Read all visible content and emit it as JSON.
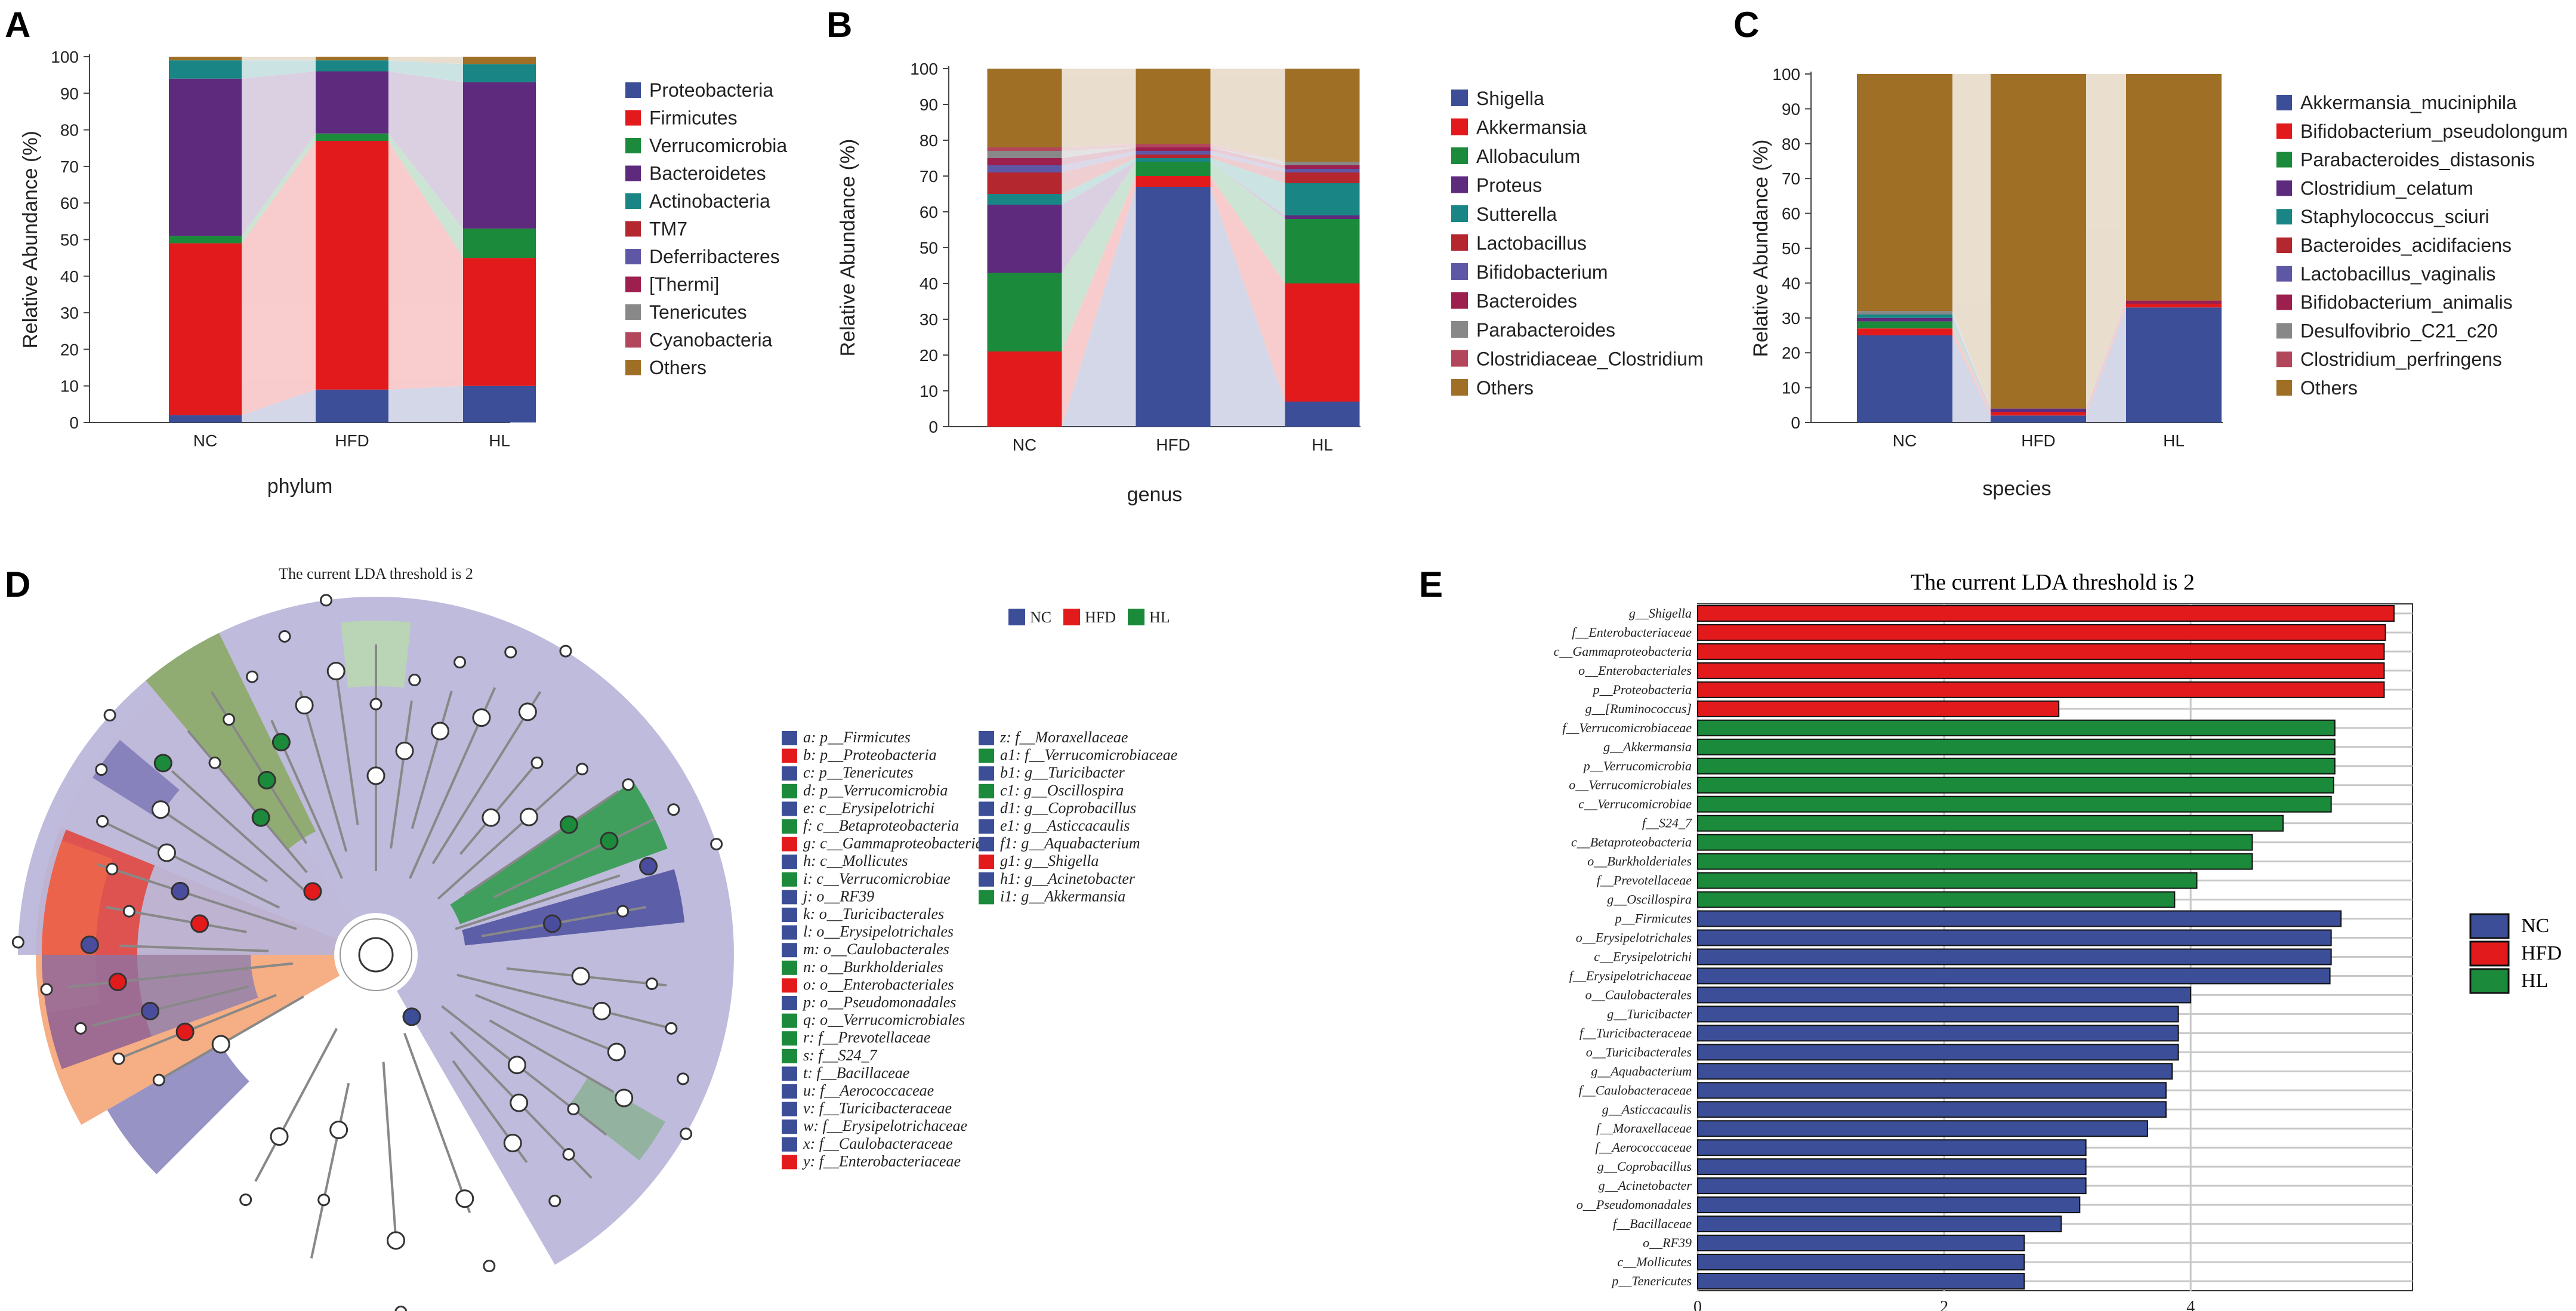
{
  "panel_labels": [
    "A",
    "B",
    "C",
    "D",
    "E"
  ],
  "chart_data": [
    {
      "type": "stacked-bar",
      "panel": "A",
      "xlabel": "phylum",
      "ylabel": "Relative Abundance (%)",
      "ylim": [
        0,
        100
      ],
      "yticks": [
        0,
        10,
        20,
        30,
        40,
        50,
        60,
        70,
        80,
        90,
        100
      ],
      "categories": [
        "NC",
        "HFD",
        "HL"
      ],
      "series": [
        {
          "name": "Proteobacteria",
          "color": "#3b4e97",
          "values": [
            2,
            9,
            10
          ]
        },
        {
          "name": "Firmicutes",
          "color": "#e31a1c",
          "values": [
            47,
            68,
            35
          ]
        },
        {
          "name": "Verrucomicrobia",
          "color": "#1b8a3a",
          "values": [
            2,
            2,
            8
          ]
        },
        {
          "name": "Bacteroidetes",
          "color": "#5e2a7e",
          "values": [
            43,
            17,
            40
          ]
        },
        {
          "name": "Actinobacteria",
          "color": "#198584",
          "values": [
            5,
            3,
            5
          ]
        },
        {
          "name": "TM7",
          "color": "#b5272e",
          "values": [
            0,
            0,
            0
          ]
        },
        {
          "name": "Deferribacteres",
          "color": "#5e57a5",
          "values": [
            0,
            0,
            0
          ]
        },
        {
          "name": "[Thermi]",
          "color": "#9c1f4e",
          "values": [
            0,
            0,
            0
          ]
        },
        {
          "name": "Tenericutes",
          "color": "#888888",
          "values": [
            0,
            0,
            0
          ]
        },
        {
          "name": "Cyanobacteria",
          "color": "#b2475c",
          "values": [
            0,
            0,
            0
          ]
        },
        {
          "name": "Others",
          "color": "#a06f26",
          "values": [
            1,
            1,
            2
          ]
        }
      ]
    },
    {
      "type": "stacked-bar",
      "panel": "B",
      "xlabel": "genus",
      "ylabel": "Relative Abundance (%)",
      "ylim": [
        0,
        100
      ],
      "yticks": [
        0,
        10,
        20,
        30,
        40,
        50,
        60,
        70,
        80,
        90,
        100
      ],
      "categories": [
        "NC",
        "HFD",
        "HL"
      ],
      "series": [
        {
          "name": "Shigella",
          "color": "#3b4e97",
          "values": [
            0,
            67,
            7
          ]
        },
        {
          "name": "Akkermansia",
          "color": "#e31a1c",
          "values": [
            21,
            3,
            33
          ]
        },
        {
          "name": "Allobaculum",
          "color": "#1b8a3a",
          "values": [
            22,
            4,
            18
          ]
        },
        {
          "name": "Proteus",
          "color": "#5e2a7e",
          "values": [
            19,
            0,
            1
          ]
        },
        {
          "name": "Sutterella",
          "color": "#198584",
          "values": [
            3,
            1,
            9
          ]
        },
        {
          "name": "Lactobacillus",
          "color": "#b5272e",
          "values": [
            6,
            1,
            3
          ]
        },
        {
          "name": "Bifidobacterium",
          "color": "#5e57a5",
          "values": [
            2,
            1,
            1
          ]
        },
        {
          "name": "Bacteroides",
          "color": "#9c1f4e",
          "values": [
            2,
            1,
            1
          ]
        },
        {
          "name": "Parabacteroides",
          "color": "#888888",
          "values": [
            2,
            0,
            1
          ]
        },
        {
          "name": "Clostridiaceae_Clostridium",
          "color": "#b2475c",
          "values": [
            1,
            1,
            0
          ]
        },
        {
          "name": "Others",
          "color": "#a06f26",
          "values": [
            22,
            21,
            26
          ]
        }
      ]
    },
    {
      "type": "stacked-bar",
      "panel": "C",
      "xlabel": "species",
      "ylabel": "Relative Abundance (%)",
      "ylim": [
        0,
        100
      ],
      "yticks": [
        0,
        10,
        20,
        30,
        40,
        50,
        60,
        70,
        80,
        90,
        100
      ],
      "categories": [
        "NC",
        "HFD",
        "HL"
      ],
      "series": [
        {
          "name": "Akkermansia_muciniphila",
          "color": "#3b4e97",
          "values": [
            25,
            2,
            33
          ]
        },
        {
          "name": "Bifidobacterium_pseudolongum",
          "color": "#e31a1c",
          "values": [
            2,
            1,
            1
          ]
        },
        {
          "name": "Parabacteroides_distasonis",
          "color": "#1b8a3a",
          "values": [
            2,
            0,
            0
          ]
        },
        {
          "name": "Clostridium_celatum",
          "color": "#5e2a7e",
          "values": [
            1,
            1,
            0
          ]
        },
        {
          "name": "Staphylococcus_sciuri",
          "color": "#198584",
          "values": [
            1,
            0,
            0
          ]
        },
        {
          "name": "Bacteroides_acidifaciens",
          "color": "#b5272e",
          "values": [
            0,
            0,
            0
          ]
        },
        {
          "name": "Lactobacillus_vaginalis",
          "color": "#5e57a5",
          "values": [
            0,
            0,
            0
          ]
        },
        {
          "name": "Bifidobacterium_animalis",
          "color": "#9c1f4e",
          "values": [
            0,
            0,
            1
          ]
        },
        {
          "name": "Desulfovibrio_C21_c20",
          "color": "#888888",
          "values": [
            1,
            0,
            0
          ]
        },
        {
          "name": "Clostridium_perfringens",
          "color": "#b2475c",
          "values": [
            0,
            0,
            0
          ]
        },
        {
          "name": "Others",
          "color": "#a06f26",
          "values": [
            68,
            96,
            65
          ]
        }
      ]
    },
    {
      "type": "cladogram",
      "panel": "D",
      "title": "The current LDA threshold is 2",
      "groups": [
        {
          "name": "NC",
          "color": "#3b4e97"
        },
        {
          "name": "HFD",
          "color": "#e31a1c"
        },
        {
          "name": "HL",
          "color": "#1b8a3a"
        }
      ],
      "legend_items": [
        {
          "text": "a: p__Firmicutes",
          "group": "NC"
        },
        {
          "text": "b: p__Proteobacteria",
          "group": "HFD"
        },
        {
          "text": "c: p__Tenericutes",
          "group": "NC"
        },
        {
          "text": "d: p__Verrucomicrobia",
          "group": "HL"
        },
        {
          "text": "e: c__Erysipelotrichi",
          "group": "NC"
        },
        {
          "text": "f: c__Betaproteobacteria",
          "group": "HL"
        },
        {
          "text": "g: c__Gammaproteobacteria",
          "group": "HFD"
        },
        {
          "text": "h: c__Mollicutes",
          "group": "NC"
        },
        {
          "text": "i: c__Verrucomicrobiae",
          "group": "HL"
        },
        {
          "text": "j: o__RF39",
          "group": "NC"
        },
        {
          "text": "k: o__Turicibacterales",
          "group": "NC"
        },
        {
          "text": "l: o__Erysipelotrichales",
          "group": "NC"
        },
        {
          "text": "m: o__Caulobacterales",
          "group": "NC"
        },
        {
          "text": "n: o__Burkholderiales",
          "group": "HL"
        },
        {
          "text": "o: o__Enterobacteriales",
          "group": "HFD"
        },
        {
          "text": "p: o__Pseudomonadales",
          "group": "NC"
        },
        {
          "text": "q: o__Verrucomicrobiales",
          "group": "HL"
        },
        {
          "text": "r: f__Prevotellaceae",
          "group": "HL"
        },
        {
          "text": "s: f__S24_7",
          "group": "HL"
        },
        {
          "text": "t: f__Bacillaceae",
          "group": "NC"
        },
        {
          "text": "u: f__Aerococcaceae",
          "group": "NC"
        },
        {
          "text": "v: f__Turicibacteraceae",
          "group": "NC"
        },
        {
          "text": "w: f__Erysipelotrichaceae",
          "group": "NC"
        },
        {
          "text": "x: f__Caulobacteraceae",
          "group": "NC"
        },
        {
          "text": "y: f__Enterobacteriaceae",
          "group": "HFD"
        },
        {
          "text": "z: f__Moraxellaceae",
          "group": "NC"
        },
        {
          "text": "a1: f__Verrucomicrobiaceae",
          "group": "HL"
        },
        {
          "text": "b1: g__Turicibacter",
          "group": "NC"
        },
        {
          "text": "c1: g__Oscillospira",
          "group": "HL"
        },
        {
          "text": "d1: g__Coprobacillus",
          "group": "NC"
        },
        {
          "text": "e1: g__Asticcacaulis",
          "group": "NC"
        },
        {
          "text": "f1: g__Aquabacterium",
          "group": "NC"
        },
        {
          "text": "g1: g__Shigella",
          "group": "HFD"
        },
        {
          "text": "h1: g__Acinetobacter",
          "group": "NC"
        },
        {
          "text": "i1: g__Akkermansia",
          "group": "HL"
        }
      ]
    },
    {
      "type": "bar-horizontal",
      "panel": "E",
      "title": "The current LDA threshold is 2",
      "xlim": [
        0,
        5.8
      ],
      "xticks": [
        0,
        2,
        4
      ],
      "legend": [
        {
          "name": "NC",
          "color": "#3b4e97"
        },
        {
          "name": "HFD",
          "color": "#e31a1c"
        },
        {
          "name": "HL",
          "color": "#1b8a3a"
        }
      ],
      "bars": [
        {
          "label": "g__Shigella",
          "group": "HFD",
          "value": 5.65
        },
        {
          "label": "f__Enterobacteriaceae",
          "group": "HFD",
          "value": 5.58
        },
        {
          "label": "c__Gammaproteobacteria",
          "group": "HFD",
          "value": 5.57
        },
        {
          "label": "o__Enterobacteriales",
          "group": "HFD",
          "value": 5.57
        },
        {
          "label": "p__Proteobacteria",
          "group": "HFD",
          "value": 5.57
        },
        {
          "label": "g__[Ruminococcus]",
          "group": "HFD",
          "value": 2.93
        },
        {
          "label": "f__Verrucomicrobiaceae",
          "group": "HL",
          "value": 5.17
        },
        {
          "label": "g__Akkermansia",
          "group": "HL",
          "value": 5.17
        },
        {
          "label": "p__Verrucomicrobia",
          "group": "HL",
          "value": 5.17
        },
        {
          "label": "o__Verrucomicrobiales",
          "group": "HL",
          "value": 5.16
        },
        {
          "label": "c__Verrucomicrobiae",
          "group": "HL",
          "value": 5.14
        },
        {
          "label": "f__S24_7",
          "group": "HL",
          "value": 4.75
        },
        {
          "label": "c__Betaproteobacteria",
          "group": "HL",
          "value": 4.5
        },
        {
          "label": "o__Burkholderiales",
          "group": "HL",
          "value": 4.5
        },
        {
          "label": "f__Prevotellaceae",
          "group": "HL",
          "value": 4.05
        },
        {
          "label": "g__Oscillospira",
          "group": "HL",
          "value": 3.87
        },
        {
          "label": "p__Firmicutes",
          "group": "NC",
          "value": 5.22
        },
        {
          "label": "o__Erysipelotrichales",
          "group": "NC",
          "value": 5.14
        },
        {
          "label": "c__Erysipelotrichi",
          "group": "NC",
          "value": 5.14
        },
        {
          "label": "f__Erysipelotrichaceae",
          "group": "NC",
          "value": 5.13
        },
        {
          "label": "o__Caulobacterales",
          "group": "NC",
          "value": 4.0
        },
        {
          "label": "g__Turicibacter",
          "group": "NC",
          "value": 3.9
        },
        {
          "label": "f__Turicibacteraceae",
          "group": "NC",
          "value": 3.9
        },
        {
          "label": "o__Turicibacterales",
          "group": "NC",
          "value": 3.9
        },
        {
          "label": "g__Aquabacterium",
          "group": "NC",
          "value": 3.85
        },
        {
          "label": "f__Caulobacteraceae",
          "group": "NC",
          "value": 3.8
        },
        {
          "label": "g__Asticcacaulis",
          "group": "NC",
          "value": 3.8
        },
        {
          "label": "f__Moraxellaceae",
          "group": "NC",
          "value": 3.65
        },
        {
          "label": "f__Aerococcaceae",
          "group": "NC",
          "value": 3.15
        },
        {
          "label": "g__Coprobacillus",
          "group": "NC",
          "value": 3.15
        },
        {
          "label": "g__Acinetobacter",
          "group": "NC",
          "value": 3.15
        },
        {
          "label": "o__Pseudomonadales",
          "group": "NC",
          "value": 3.1
        },
        {
          "label": "f__Bacillaceae",
          "group": "NC",
          "value": 2.95
        },
        {
          "label": "o__RF39",
          "group": "NC",
          "value": 2.65
        },
        {
          "label": "c__Mollicutes",
          "group": "NC",
          "value": 2.65
        },
        {
          "label": "p__Tenericutes",
          "group": "NC",
          "value": 2.65
        }
      ]
    }
  ]
}
